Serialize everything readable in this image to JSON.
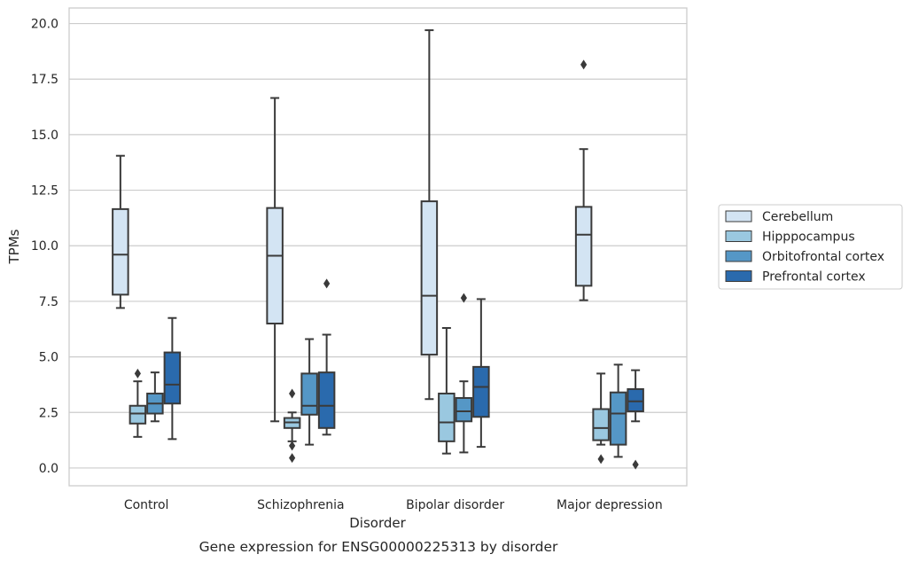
{
  "chart_data": {
    "type": "boxplot",
    "caption": "Gene expression for ENSG00000225313 by disorder",
    "xlabel": "Disorder",
    "ylabel": "TPMs",
    "ylim": [
      -0.8,
      20.7
    ],
    "yticks": [
      "0.0",
      "2.5",
      "5.0",
      "7.5",
      "10.0",
      "12.5",
      "15.0",
      "17.5",
      "20.0"
    ],
    "grid": "horizontal",
    "legend_position": "right",
    "categories": [
      "Control",
      "Schizophrenia",
      "Bipolar disorder",
      "Major depression"
    ],
    "series": [
      {
        "name": "Cerebellum",
        "color": "#d3e4f3",
        "boxes": [
          {
            "whisker_low": 7.2,
            "q1": 7.8,
            "median": 9.6,
            "q3": 11.65,
            "whisker_high": 14.05,
            "outliers": []
          },
          {
            "whisker_low": 2.1,
            "q1": 6.5,
            "median": 9.55,
            "q3": 11.7,
            "whisker_high": 16.65,
            "outliers": []
          },
          {
            "whisker_low": 3.1,
            "q1": 5.1,
            "median": 7.75,
            "q3": 12.0,
            "whisker_high": 19.7,
            "outliers": []
          },
          {
            "whisker_low": 7.55,
            "q1": 8.2,
            "median": 10.5,
            "q3": 11.75,
            "whisker_high": 14.35,
            "outliers": [
              18.15
            ]
          }
        ]
      },
      {
        "name": "Hipppocampus",
        "color": "#9ac8e0",
        "boxes": [
          {
            "whisker_low": 1.4,
            "q1": 2.0,
            "median": 2.45,
            "q3": 2.8,
            "whisker_high": 3.9,
            "outliers": [
              4.25
            ]
          },
          {
            "whisker_low": 1.2,
            "q1": 1.8,
            "median": 2.05,
            "q3": 2.25,
            "whisker_high": 2.5,
            "outliers": [
              3.35,
              1.0,
              0.45
            ]
          },
          {
            "whisker_low": 0.65,
            "q1": 1.2,
            "median": 2.05,
            "q3": 3.35,
            "whisker_high": 6.3,
            "outliers": []
          },
          {
            "whisker_low": 1.05,
            "q1": 1.25,
            "median": 1.8,
            "q3": 2.65,
            "whisker_high": 4.25,
            "outliers": [
              0.4
            ]
          }
        ]
      },
      {
        "name": "Orbitofrontal cortex",
        "color": "#5597c6",
        "boxes": [
          {
            "whisker_low": 2.1,
            "q1": 2.45,
            "median": 2.9,
            "q3": 3.35,
            "whisker_high": 4.3,
            "outliers": []
          },
          {
            "whisker_low": 1.05,
            "q1": 2.4,
            "median": 2.8,
            "q3": 4.25,
            "whisker_high": 5.8,
            "outliers": []
          },
          {
            "whisker_low": 0.7,
            "q1": 2.1,
            "median": 2.55,
            "q3": 3.15,
            "whisker_high": 3.9,
            "outliers": [
              7.65
            ]
          },
          {
            "whisker_low": 0.5,
            "q1": 1.05,
            "median": 2.45,
            "q3": 3.4,
            "whisker_high": 4.65,
            "outliers": []
          }
        ]
      },
      {
        "name": "Prefrontal cortex",
        "color": "#2a6aad",
        "boxes": [
          {
            "whisker_low": 1.3,
            "q1": 2.9,
            "median": 3.75,
            "q3": 5.2,
            "whisker_high": 6.75,
            "outliers": []
          },
          {
            "whisker_low": 1.5,
            "q1": 1.8,
            "median": 2.8,
            "q3": 4.3,
            "whisker_high": 6.0,
            "outliers": [
              8.3
            ]
          },
          {
            "whisker_low": 0.95,
            "q1": 2.3,
            "median": 3.65,
            "q3": 4.55,
            "whisker_high": 7.6,
            "outliers": []
          },
          {
            "whisker_low": 2.1,
            "q1": 2.55,
            "median": 3.0,
            "q3": 3.55,
            "whisker_high": 4.4,
            "outliers": [
              0.15
            ]
          }
        ]
      }
    ]
  }
}
